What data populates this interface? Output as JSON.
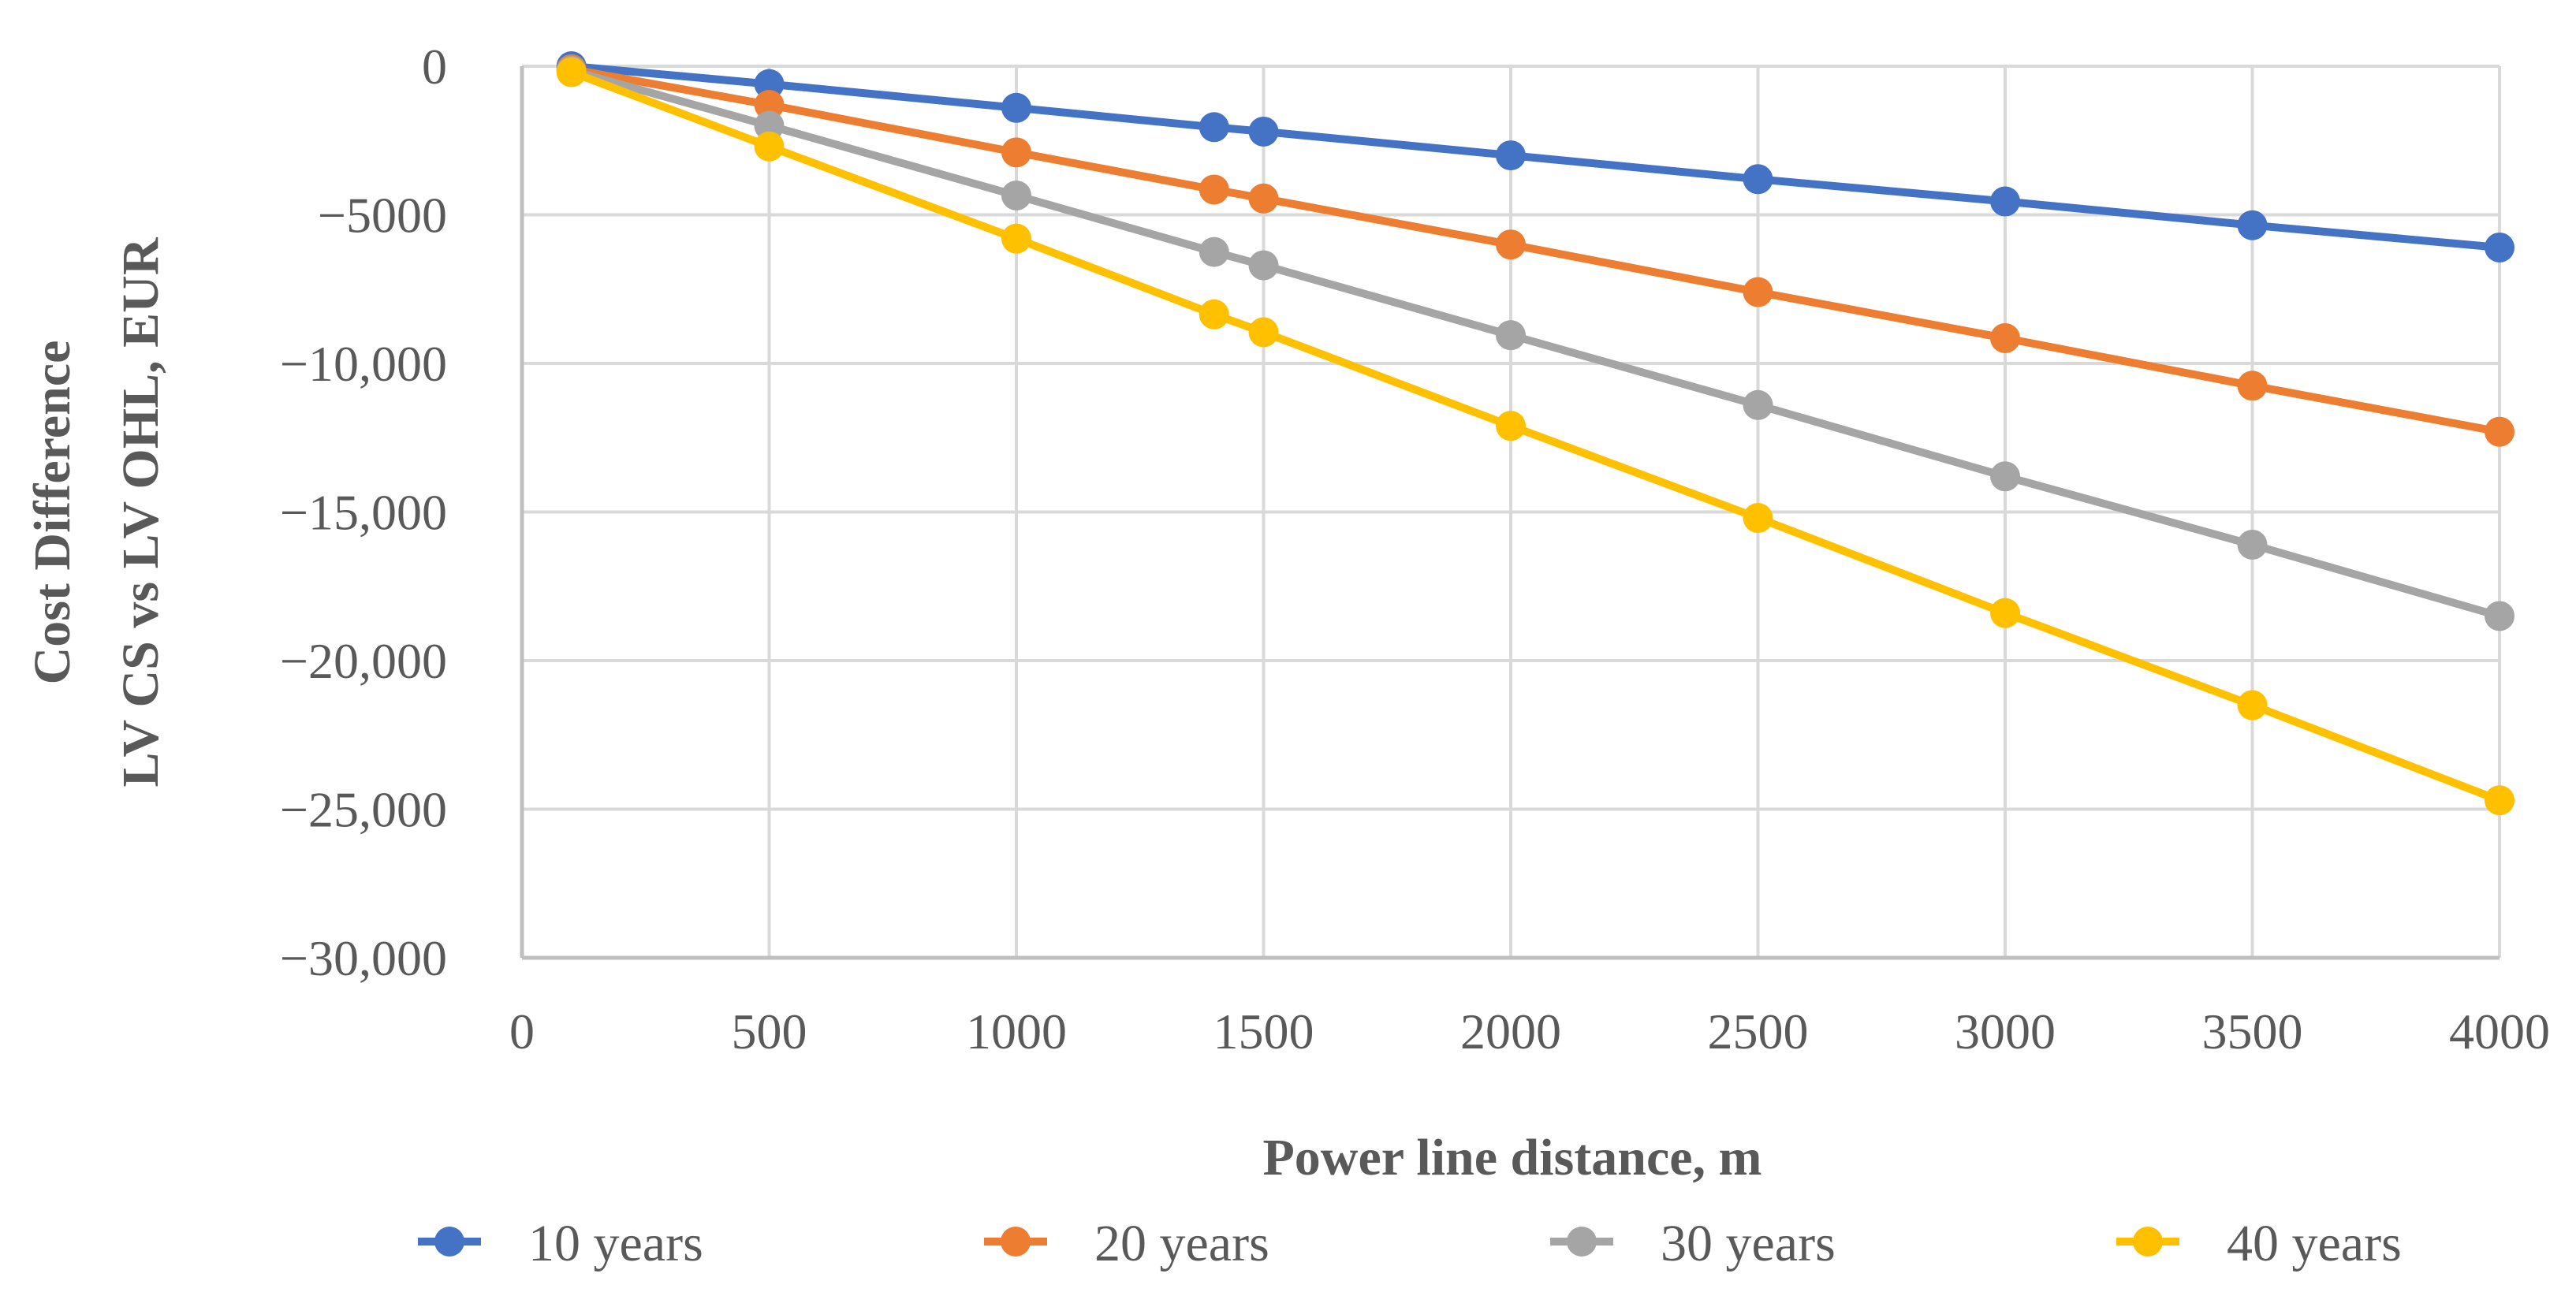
{
  "chart_data": {
    "type": "line",
    "title": "",
    "xlabel": "Power line distance, m",
    "ylabel_lines": [
      "Cost Difference",
      "LV CS vs LV OHL,  EUR"
    ],
    "x": [
      100,
      500,
      1000,
      1400,
      1500,
      2000,
      2500,
      3000,
      3500,
      4000
    ],
    "xlim": [
      0,
      4000
    ],
    "ylim": [
      -30000,
      0
    ],
    "x_ticks": [
      0,
      500,
      1000,
      1500,
      2000,
      2500,
      3000,
      3500,
      4000
    ],
    "x_tick_labels": [
      "0",
      "500",
      "1000",
      "1500",
      "2000",
      "2500",
      "3000",
      "3500",
      "4000"
    ],
    "y_ticks": [
      0,
      -5000,
      -10000,
      -15000,
      -20000,
      -25000,
      -30000
    ],
    "y_tick_labels": [
      "0",
      "−5000",
      "−10,000",
      "−15,000",
      "−20,000",
      "−25,000",
      "−30,000"
    ],
    "grid": true,
    "legend_position": "bottom",
    "series": [
      {
        "name": "10 years",
        "color": "#4472C4",
        "values": [
          0,
          -600,
          -1400,
          -2050,
          -2200,
          -3000,
          -3800,
          -4550,
          -5350,
          -6100
        ]
      },
      {
        "name": "20 years",
        "color": "#ED7D31",
        "values": [
          -100,
          -1300,
          -2900,
          -4150,
          -4450,
          -6000,
          -7600,
          -9150,
          -10750,
          -12300
        ]
      },
      {
        "name": "30 years",
        "color": "#A5A5A5",
        "values": [
          -150,
          -2000,
          -4350,
          -6250,
          -6700,
          -9050,
          -11400,
          -13800,
          -16100,
          -18500
        ]
      },
      {
        "name": "40 years",
        "color": "#FFC000",
        "values": [
          -200,
          -2700,
          -5800,
          -8350,
          -8950,
          -12100,
          -15200,
          -18400,
          -21500,
          -24700
        ]
      }
    ]
  }
}
